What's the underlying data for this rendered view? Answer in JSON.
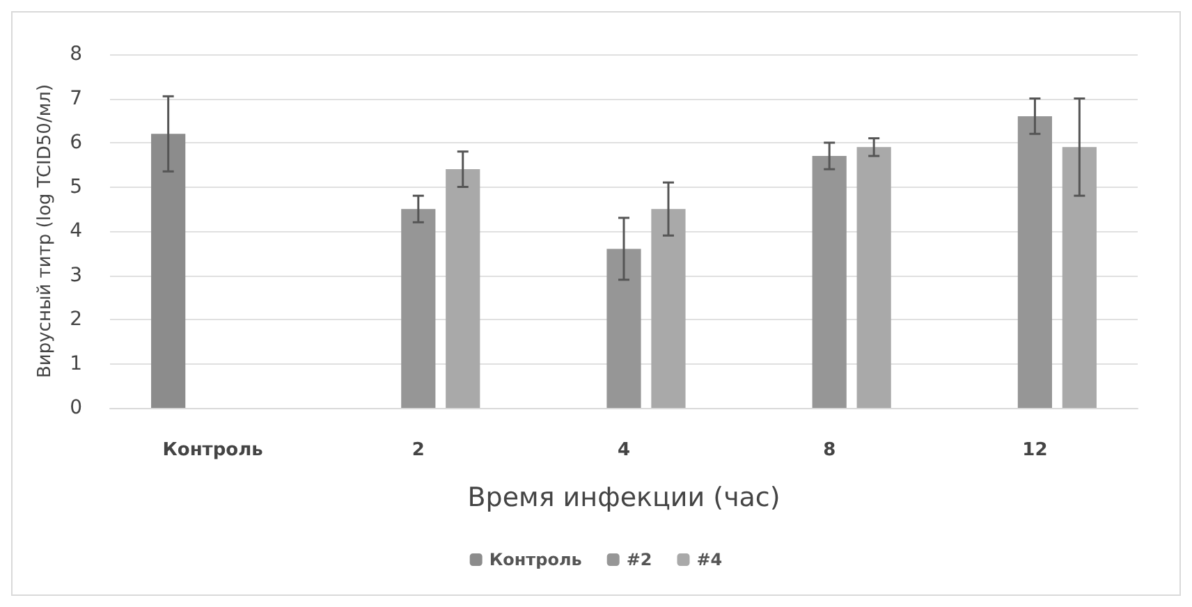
{
  "chart_data": {
    "type": "bar",
    "xlabel": "Время инфекции (час)",
    "ylabel": "Вирусный титр (log TCID50/мл)",
    "categories": [
      "Контроль",
      "2",
      "4",
      "8",
      "12"
    ],
    "series": [
      {
        "name": "Контроль",
        "color": "#8c8c8c",
        "values": [
          6.2,
          null,
          null,
          null,
          null
        ],
        "errors": [
          0.85,
          null,
          null,
          null,
          null
        ]
      },
      {
        "name": "#2",
        "color": "#969696",
        "values": [
          null,
          4.5,
          3.6,
          5.7,
          6.6
        ],
        "errors": [
          null,
          0.3,
          0.7,
          0.3,
          0.4
        ]
      },
      {
        "name": "#4",
        "color": "#a9a9a9",
        "values": [
          null,
          5.4,
          4.5,
          5.9,
          5.9
        ],
        "errors": [
          null,
          0.4,
          0.6,
          0.2,
          1.1
        ]
      }
    ],
    "ylim": [
      0,
      8
    ],
    "yticks": [
      0,
      1,
      2,
      3,
      4,
      5,
      6,
      7,
      8
    ],
    "grid": "y",
    "legend": "bottom"
  }
}
